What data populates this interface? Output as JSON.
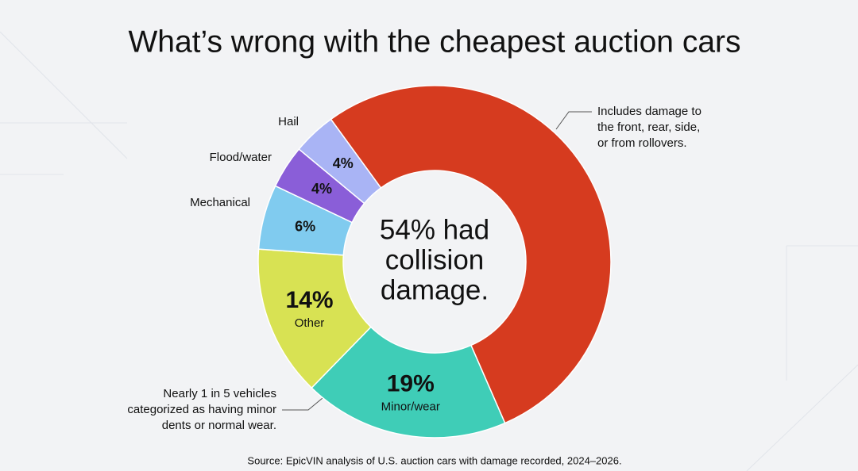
{
  "chart_data": {
    "type": "donut",
    "title": "What’s wrong with the cheapest auction cars",
    "categories": [
      null,
      "Minor/wear",
      "Other",
      "Mechanical",
      "Flood/water",
      "Hail"
    ],
    "values": [
      54,
      19,
      14,
      6,
      4,
      4
    ],
    "value_labels": [
      null,
      "19%",
      "14%",
      "6%",
      "4%",
      "4%"
    ],
    "colors": [
      "#d63b1f",
      "#3fcdb7",
      "#d8e253",
      "#80cbef",
      "#8a5ed8",
      "#a9b4f5"
    ],
    "center_text": [
      "54% had",
      "collision",
      "damage."
    ],
    "annotations": [
      [
        "Includes damage to",
        "the front, rear, side,",
        "or from rollovers."
      ],
      [
        "Nearly 1 in 5 vehicles",
        "categorized as having minor",
        "dents or normal wear."
      ]
    ],
    "source": "Source: EpicVIN analysis of U.S. auction cars with damage recorded, 2024–2026."
  }
}
